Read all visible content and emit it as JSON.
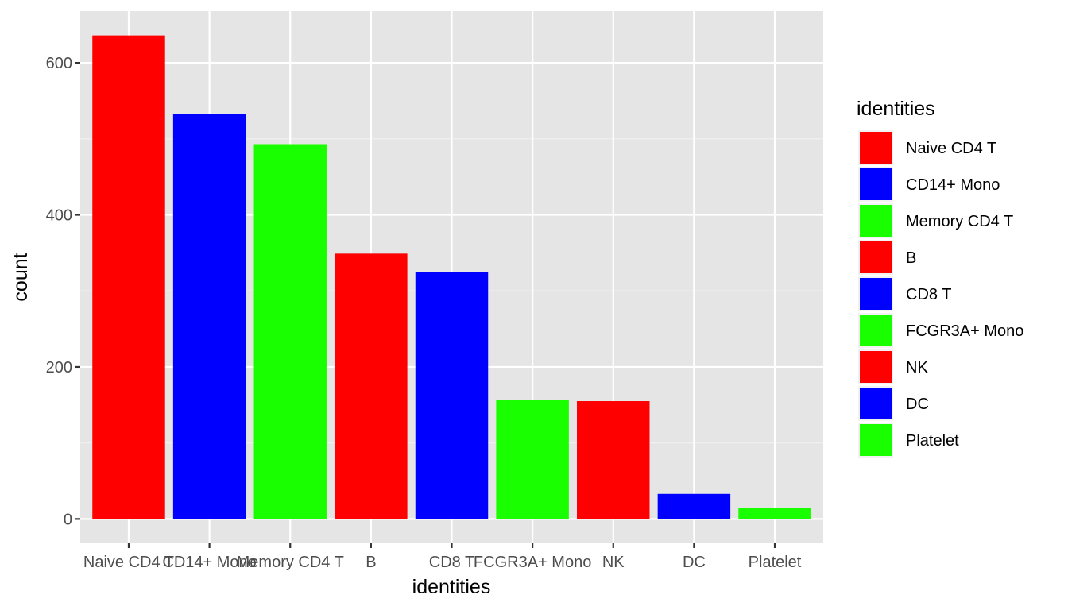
{
  "chart_data": {
    "type": "bar",
    "title": "",
    "xlabel": "identities",
    "ylabel": "count",
    "categories": [
      "Naive CD4 T",
      "CD14+ Mono",
      "Memory CD4 T",
      "B",
      "CD8 T",
      "FCGR3A+ Mono",
      "NK",
      "DC",
      "Platelet"
    ],
    "values": [
      636,
      533,
      493,
      349,
      325,
      157,
      155,
      33,
      15
    ],
    "bar_colors": [
      "#FF0000",
      "#0000FF",
      "#1AFF00",
      "#FF0000",
      "#0000FF",
      "#1AFF00",
      "#FF0000",
      "#0000FF",
      "#1AFF00"
    ],
    "ylim": [
      -32,
      668
    ],
    "yticks": [
      0,
      200,
      400,
      600
    ],
    "ytick_labels": [
      "0",
      "200",
      "400",
      "600"
    ],
    "grid": true,
    "panel_background": "#E5E5E5",
    "legend": {
      "title": "identities",
      "placement": "right",
      "items": [
        {
          "label": "Naive CD4 T",
          "color": "#FF0000"
        },
        {
          "label": "CD14+ Mono",
          "color": "#0000FF"
        },
        {
          "label": "Memory CD4 T",
          "color": "#1AFF00"
        },
        {
          "label": "B",
          "color": "#FF0000"
        },
        {
          "label": "CD8 T",
          "color": "#0000FF"
        },
        {
          "label": "FCGR3A+ Mono",
          "color": "#1AFF00"
        },
        {
          "label": "NK",
          "color": "#FF0000"
        },
        {
          "label": "DC",
          "color": "#0000FF"
        },
        {
          "label": "Platelet",
          "color": "#1AFF00"
        }
      ]
    }
  }
}
